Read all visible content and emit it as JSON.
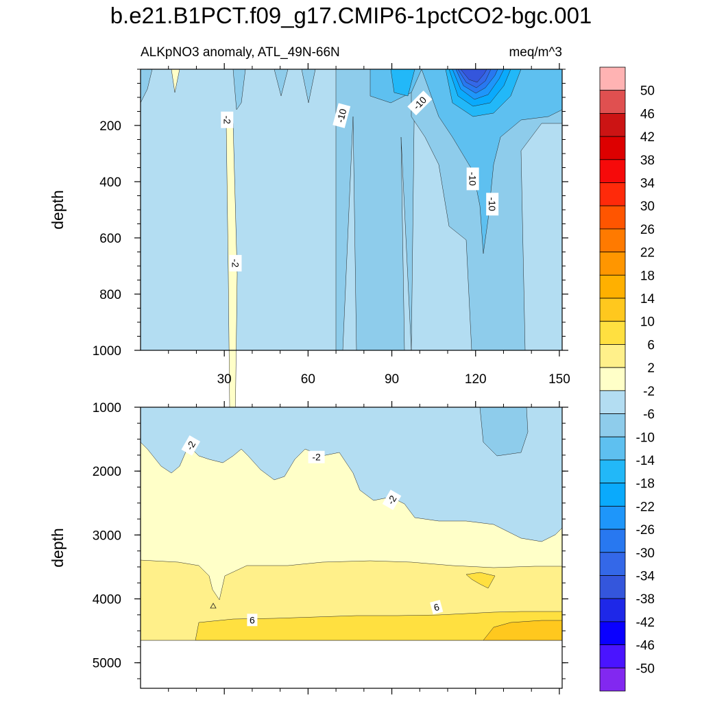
{
  "title": "b.e21.B1PCT.f09_g17.CMIP6-1pctCO2-bgc.001",
  "subtitle_left": "ALKpNO3 anomaly, ATL_49N-66N",
  "subtitle_right": "meq/m^3",
  "chart_data": [
    {
      "type": "contour",
      "name": "upper-panel",
      "xlabel": "",
      "ylabel": "depth",
      "xlim": [
        0,
        151
      ],
      "ylim": [
        1000,
        0
      ],
      "xticks": [
        30,
        60,
        90,
        120,
        150
      ],
      "yticks": [
        200,
        400,
        600,
        800,
        1000
      ],
      "contour_labels": [
        {
          "text": "-2",
          "x": 31,
          "depth": 180
        },
        {
          "text": "-2",
          "x": 34,
          "depth": 690
        },
        {
          "text": "-10",
          "x": 72,
          "depth": 165
        },
        {
          "text": "-10",
          "x": 100,
          "depth": 120
        },
        {
          "text": "-10",
          "x": 119,
          "depth": 390
        },
        {
          "text": "-10",
          "x": 126,
          "depth": 480
        }
      ]
    },
    {
      "type": "contour",
      "name": "lower-panel",
      "xlabel": "",
      "ylabel": "depth",
      "xlim": [
        0,
        151
      ],
      "ylim": [
        5400,
        1000
      ],
      "yticks": [
        1000,
        2000,
        3000,
        4000,
        5000
      ],
      "contour_labels": [
        {
          "text": "-2",
          "x": 18,
          "depth": 1600
        },
        {
          "text": "-2",
          "x": 63,
          "depth": 1780
        },
        {
          "text": "-2",
          "x": 90,
          "depth": 2450
        },
        {
          "text": "6",
          "x": 40,
          "depth": 4330
        },
        {
          "text": "6",
          "x": 106,
          "depth": 4130
        }
      ]
    }
  ],
  "colorbar": {
    "labels": [
      "50",
      "46",
      "42",
      "38",
      "34",
      "30",
      "26",
      "22",
      "18",
      "14",
      "10",
      "6",
      "2",
      "-2",
      "-6",
      "-10",
      "-14",
      "-18",
      "-22",
      "-26",
      "-30",
      "-34",
      "-38",
      "-42",
      "-46",
      "-50"
    ],
    "colors": [
      "#ffb3b3",
      "#e05050",
      "#cc1414",
      "#dd0000",
      "#f60a0a",
      "#ff2a0a",
      "#ff5500",
      "#ff7a00",
      "#ff9600",
      "#ffb000",
      "#ffc81e",
      "#ffe040",
      "#fff08a",
      "#ffffc8",
      "#b3ddf2",
      "#8ecceb",
      "#5ec0f0",
      "#22b8f8",
      "#0aaafc",
      "#1e96fa",
      "#2878f0",
      "#3468e8",
      "#3456dc",
      "#1e28e8",
      "#0a00ff",
      "#4a14ff",
      "#8228f0"
    ]
  }
}
